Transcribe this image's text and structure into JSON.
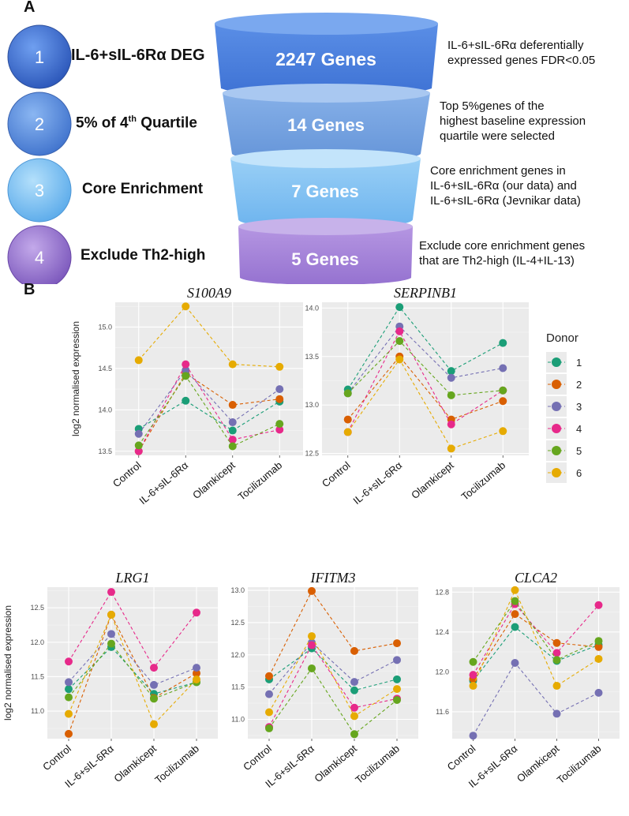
{
  "panel_a": {
    "label": "A",
    "steps": [
      {
        "number": "1",
        "name": "IL-6+sIL-6Rα DEG",
        "count": "2247 Genes",
        "desc_lines": [
          "IL-6+sIL-6Rα deferentially",
          "expressed genes FDR<0.05"
        ],
        "circle_color": "#3f6fd1",
        "funnel_color": "#4a7fdc"
      },
      {
        "number": "2",
        "name": "5% of 4th Quartile",
        "count": "14 Genes",
        "desc_lines": [
          "Top 5%genes of the",
          "highest baseline expression",
          "quartile were selected"
        ],
        "circle_color": "#5b8fdf",
        "funnel_color": "#6f9fe0"
      },
      {
        "number": "3",
        "name": "Core Enrichment",
        "count": "7 Genes",
        "desc_lines": [
          "Core enrichment genes in",
          "IL-6+sIL-6Rα (our data) and",
          "IL-6+sIL-6Rα (Jevnikar data)"
        ],
        "circle_color": "#7fc3f2",
        "funnel_color": "#7fbdf0"
      },
      {
        "number": "4",
        "name": "Exclude Th2-high",
        "count": "5 Genes",
        "desc_lines": [
          "Exclude core enrichment genes",
          "that are Th2-high (IL-4+IL-13)"
        ],
        "circle_color": "#9a78d0",
        "funnel_color": "#a07fd6"
      }
    ]
  },
  "panel_b": {
    "label": "B",
    "ylabel": "log2 normalised expression",
    "legend_title": "Donor",
    "donors": [
      "1",
      "2",
      "3",
      "4",
      "5",
      "6"
    ],
    "donor_colors": [
      "#1b9e77",
      "#d95f02",
      "#7570b3",
      "#e7298a",
      "#66a61e",
      "#e6ab02"
    ]
  },
  "chart_data": [
    {
      "type": "line",
      "title": "S100A9",
      "categories": [
        "Control",
        "IL-6+sIL-6Rα",
        "Olamkicept",
        "Tocilizumab"
      ],
      "ylabel": "log2 normalised expression",
      "ylim": [
        13.45,
        15.3
      ],
      "yticks": [
        "13.5",
        "14.0",
        "14.5",
        "15.0"
      ],
      "series": [
        {
          "name": "1",
          "values": [
            13.77,
            14.11,
            13.75,
            14.1
          ]
        },
        {
          "name": "2",
          "values": [
            13.5,
            14.44,
            14.06,
            14.13
          ]
        },
        {
          "name": "3",
          "values": [
            13.71,
            14.48,
            13.85,
            14.25
          ]
        },
        {
          "name": "4",
          "values": [
            13.5,
            14.55,
            13.64,
            13.76
          ]
        },
        {
          "name": "5",
          "values": [
            13.57,
            14.41,
            13.56,
            13.83
          ]
        },
        {
          "name": "6",
          "values": [
            14.6,
            15.25,
            14.55,
            14.52
          ]
        }
      ]
    },
    {
      "type": "line",
      "title": "SERPINB1",
      "categories": [
        "Control",
        "IL-6+sIL-6Rα",
        "Olamkicept",
        "Tocilizumab"
      ],
      "ylim": [
        12.48,
        14.06
      ],
      "yticks": [
        "12.5",
        "13.0",
        "13.5",
        "14.0"
      ],
      "series": [
        {
          "name": "1",
          "values": [
            13.16,
            14.01,
            13.35,
            13.64
          ]
        },
        {
          "name": "2",
          "values": [
            12.85,
            13.5,
            12.85,
            13.04
          ]
        },
        {
          "name": "3",
          "values": [
            13.12,
            13.81,
            13.28,
            13.38
          ]
        },
        {
          "name": "4",
          "values": [
            12.72,
            13.76,
            12.8,
            13.15
          ]
        },
        {
          "name": "5",
          "values": [
            13.12,
            13.66,
            13.1,
            13.15
          ]
        },
        {
          "name": "6",
          "values": [
            12.72,
            13.47,
            12.55,
            12.73
          ]
        }
      ]
    },
    {
      "type": "line",
      "title": "LRG1",
      "categories": [
        "Control",
        "IL-6+sIL-6Rα",
        "Olamkicept",
        "Tocilizumab"
      ],
      "ylabel": "log2 normalised expression",
      "ylim": [
        10.6,
        12.8
      ],
      "yticks": [
        "11.0",
        "11.5",
        "12.0",
        "12.5"
      ],
      "series": [
        {
          "name": "1",
          "values": [
            11.32,
            11.93,
            11.25,
            11.42
          ]
        },
        {
          "name": "2",
          "values": [
            10.67,
            12.4,
            11.19,
            11.55
          ]
        },
        {
          "name": "3",
          "values": [
            11.42,
            12.12,
            11.38,
            11.63
          ]
        },
        {
          "name": "4",
          "values": [
            11.72,
            12.73,
            11.63,
            12.43
          ]
        },
        {
          "name": "5",
          "values": [
            11.2,
            11.98,
            11.18,
            11.42
          ]
        },
        {
          "name": "6",
          "values": [
            10.96,
            12.4,
            10.81,
            11.46
          ]
        }
      ]
    },
    {
      "type": "line",
      "title": "IFITM3",
      "categories": [
        "Control",
        "IL-6+sIL-6Rα",
        "Olamkicept",
        "Tocilizumab"
      ],
      "ylim": [
        10.7,
        13.05
      ],
      "yticks": [
        "11.0",
        "11.5",
        "12.0",
        "12.5",
        "13.0"
      ],
      "series": [
        {
          "name": "1",
          "values": [
            11.62,
            12.1,
            11.45,
            11.62
          ]
        },
        {
          "name": "2",
          "values": [
            11.67,
            12.99,
            12.06,
            12.18
          ]
        },
        {
          "name": "3",
          "values": [
            11.39,
            12.19,
            11.58,
            11.92
          ]
        },
        {
          "name": "4",
          "values": [
            10.88,
            12.15,
            11.18,
            11.32
          ]
        },
        {
          "name": "5",
          "values": [
            10.86,
            11.79,
            10.77,
            11.3
          ]
        },
        {
          "name": "6",
          "values": [
            11.11,
            12.29,
            11.05,
            11.47
          ]
        }
      ]
    },
    {
      "type": "line",
      "title": "CLCA2",
      "categories": [
        "Control",
        "IL-6+sIL-6Rα",
        "Olamkicept",
        "Tocilizumab"
      ],
      "ylim": [
        11.33,
        12.85
      ],
      "yticks": [
        "11.6",
        "12.0",
        "12.4",
        "12.8"
      ],
      "series": [
        {
          "name": "1",
          "values": [
            11.91,
            12.45,
            12.11,
            12.27
          ]
        },
        {
          "name": "2",
          "values": [
            11.93,
            12.58,
            12.29,
            12.25
          ]
        },
        {
          "name": "3",
          "values": [
            11.36,
            12.09,
            11.58,
            11.79
          ]
        },
        {
          "name": "4",
          "values": [
            11.97,
            12.68,
            12.19,
            12.67
          ]
        },
        {
          "name": "5",
          "values": [
            12.1,
            12.71,
            12.12,
            12.31
          ]
        },
        {
          "name": "6",
          "values": [
            11.86,
            12.82,
            11.86,
            12.13
          ]
        }
      ]
    }
  ]
}
